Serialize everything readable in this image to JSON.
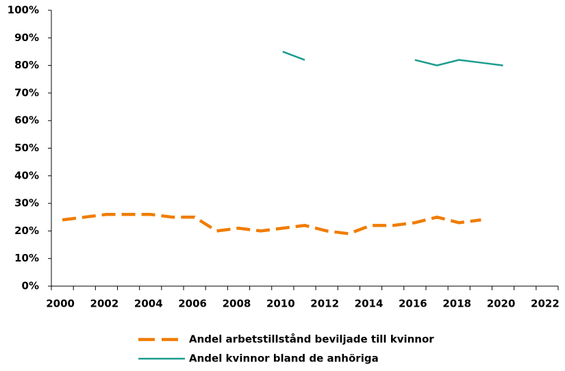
{
  "chart_data": {
    "type": "line",
    "categories": [
      "2000",
      null,
      "2002",
      null,
      "2004",
      null,
      "2006",
      null,
      "2008",
      null,
      "2010",
      null,
      "2012",
      null,
      "2014",
      null,
      "2016",
      null,
      "2018",
      null,
      "2020",
      null,
      "2022"
    ],
    "series": [
      {
        "name": "Andel arbetstillstånd beviljade till kvinnor",
        "color": "#f07c00",
        "dashed": true,
        "values": [
          24,
          25,
          26,
          26,
          26,
          25,
          25,
          20,
          21,
          20,
          21,
          22,
          20,
          19,
          22,
          22,
          23,
          25,
          23,
          24,
          null,
          null,
          null
        ]
      },
      {
        "name": "Andel kvinnor bland de anhöriga",
        "color": "#1a9b8c",
        "dashed": false,
        "values": [
          null,
          null,
          null,
          null,
          null,
          null,
          null,
          null,
          null,
          null,
          85,
          82,
          null,
          null,
          null,
          null,
          82,
          80,
          82,
          81,
          80,
          null,
          null
        ]
      }
    ],
    "ylim": [
      0,
      100
    ],
    "yticks": [
      {
        "value": 0,
        "label": "0%"
      },
      {
        "value": 10,
        "label": "10%"
      },
      {
        "value": 20,
        "label": "20%"
      },
      {
        "value": 30,
        "label": "30%"
      },
      {
        "value": 40,
        "label": "40%"
      },
      {
        "value": 50,
        "label": "50%"
      },
      {
        "value": 60,
        "label": "60%"
      },
      {
        "value": 70,
        "label": "70%"
      },
      {
        "value": 80,
        "label": "80%"
      },
      {
        "value": 90,
        "label": "90%"
      },
      {
        "value": 100,
        "label": "100%"
      }
    ],
    "grid": false,
    "legend": "bottom"
  }
}
